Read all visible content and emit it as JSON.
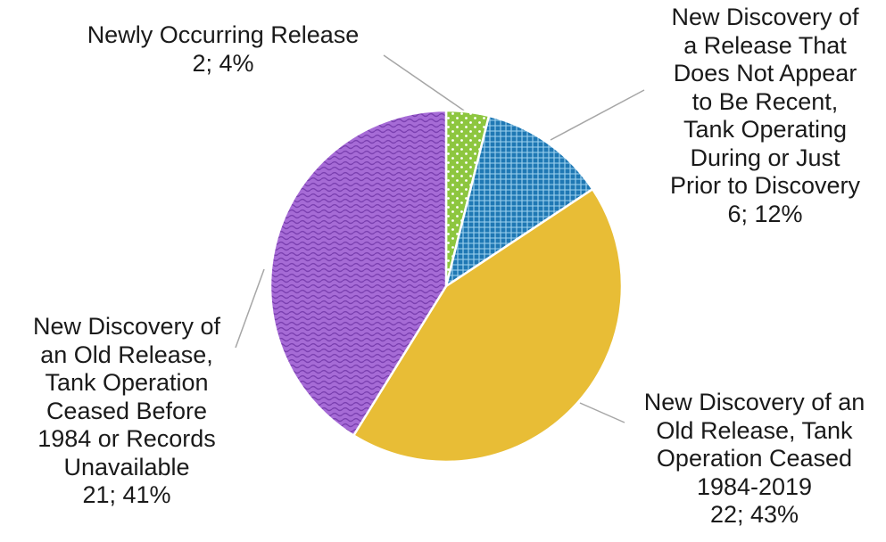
{
  "chart_data": {
    "type": "pie",
    "title": "",
    "slices": [
      {
        "name": "Newly Occurring Release",
        "value": 2,
        "percent": 4,
        "value_label": "2; 4%",
        "label_lines": [
          "Newly Occurring Release",
          "2; 4%"
        ],
        "color": "#8dc63f",
        "pattern": "dots"
      },
      {
        "name": "New Discovery of a Release That Does Not Appear to Be Recent, Tank Operating During or Just Prior to Discovery",
        "value": 6,
        "percent": 12,
        "value_label": "6; 12%",
        "label_lines": [
          "New Discovery of",
          "a Release That",
          "Does Not Appear",
          "to Be Recent,",
          "Tank Operating",
          "During or Just",
          "Prior to Discovery",
          "6; 12%"
        ],
        "color": "#1f78b4",
        "pattern": "grid"
      },
      {
        "name": "New Discovery of an Old Release, Tank Operation Ceased 1984-2019",
        "value": 22,
        "percent": 43,
        "value_label": "22; 43%",
        "label_lines": [
          "New Discovery of an",
          "Old Release, Tank",
          "Operation Ceased",
          "1984-2019",
          "22; 43%"
        ],
        "color": "#e8bd36",
        "pattern": "solid"
      },
      {
        "name": "New Discovery of an Old Release, Tank Operation Ceased Before 1984 or Records Unavailable",
        "value": 21,
        "percent": 41,
        "value_label": "21; 41%",
        "label_lines": [
          "New Discovery of",
          "an Old Release,",
          "Tank Operation",
          "Ceased Before",
          "1984 or Records",
          "Unavailable",
          "21; 41%"
        ],
        "color": "#a66bd6",
        "pattern": "waves"
      }
    ],
    "legend": "none"
  }
}
